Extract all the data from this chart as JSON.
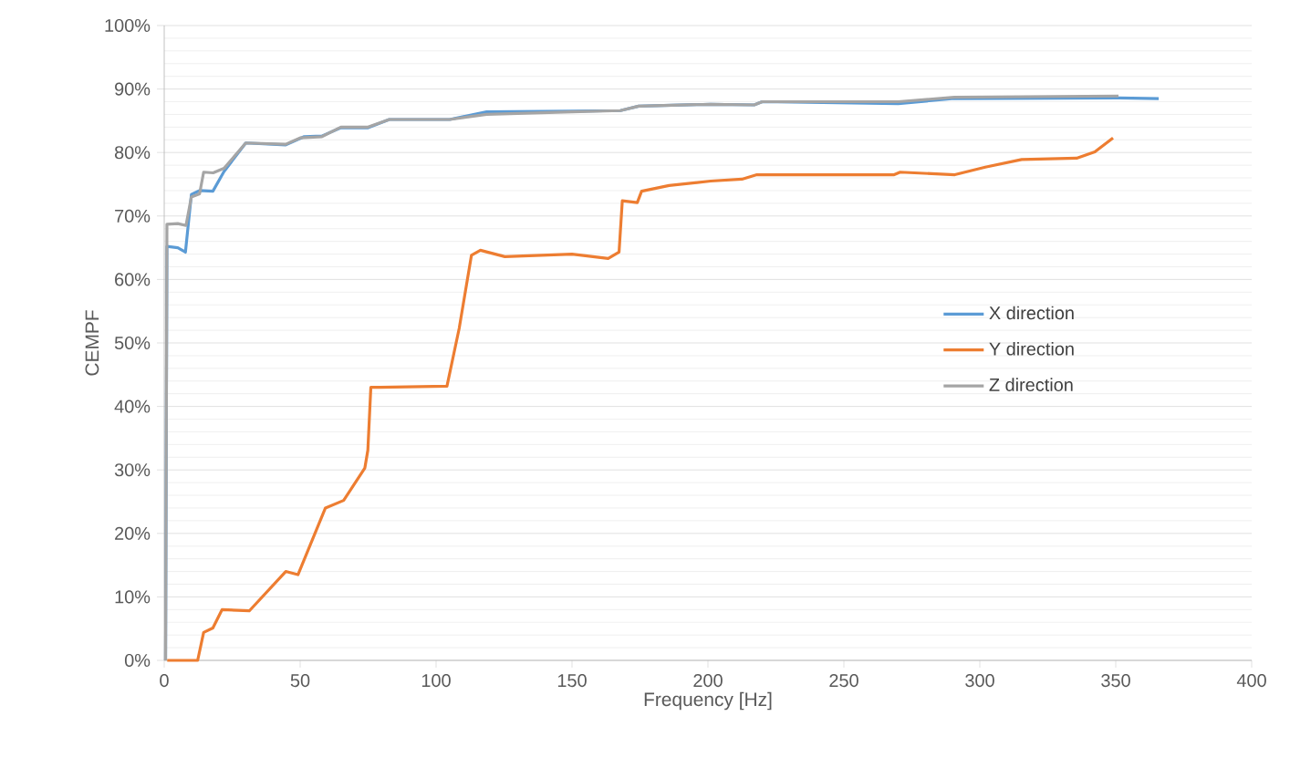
{
  "chart_data": {
    "type": "line",
    "xlabel": "Frequency [Hz]",
    "ylabel": "CEMPF",
    "xlim": [
      0,
      400
    ],
    "xticks": [
      0,
      50,
      100,
      150,
      200,
      250,
      300,
      350,
      400
    ],
    "ylim": [
      0,
      100
    ],
    "yticks": [
      {
        "value": 0,
        "label": "0%"
      },
      {
        "value": 10,
        "label": "10%"
      },
      {
        "value": 20,
        "label": "20%"
      },
      {
        "value": 30,
        "label": "30%"
      },
      {
        "value": 40,
        "label": "40%"
      },
      {
        "value": 50,
        "label": "50%"
      },
      {
        "value": 60,
        "label": "60%"
      },
      {
        "value": 70,
        "label": "70%"
      },
      {
        "value": 80,
        "label": "80%"
      },
      {
        "value": 90,
        "label": "90%"
      },
      {
        "value": 100,
        "label": "100%"
      }
    ],
    "grid": "y",
    "legend": "right",
    "marker": "none",
    "line_style": "solid",
    "series": [
      {
        "name": "X direction",
        "color": "#5b9bd5",
        "x": [
          0.5,
          1,
          5,
          7.8,
          10,
          13,
          17.9,
          22,
          30,
          44.7,
          51.5,
          58,
          65,
          75,
          82.8,
          105,
          118.6,
          150,
          167.8,
          174.5,
          201,
          217,
          220,
          270,
          290.6,
          351,
          365.8
        ],
        "values": [
          0,
          65.2,
          65,
          64.3,
          73.4,
          74,
          73.9,
          77,
          81.5,
          81.2,
          82.5,
          82.6,
          83.9,
          83.9,
          85.2,
          85.2,
          86.4,
          86.5,
          86.6,
          87.3,
          87.6,
          87.5,
          88,
          87.7,
          88.5,
          88.6,
          88.5
        ]
      },
      {
        "name": "Y direction",
        "color": "#ed7d31",
        "x": [
          1.1,
          12.3,
          14.5,
          17.9,
          21.3,
          31.3,
          44.7,
          49.2,
          59.3,
          66,
          73.8,
          74.9,
          76,
          79.4,
          104,
          108.5,
          113,
          116.3,
          125.3,
          150,
          163.3,
          167.3,
          168.5,
          174,
          175.6,
          185.7,
          201,
          212.5,
          218,
          268.5,
          270.7,
          290.8,
          302,
          315.4,
          335.6,
          342.3,
          349
        ],
        "values": [
          0,
          0,
          4.4,
          5.1,
          8,
          7.8,
          14,
          13.5,
          24,
          25.2,
          30.3,
          33.1,
          43,
          43,
          43.2,
          52.3,
          63.8,
          64.6,
          63.6,
          64,
          63.3,
          64.3,
          72.4,
          72.1,
          73.9,
          74.8,
          75.5,
          75.8,
          76.5,
          76.5,
          76.9,
          76.5,
          77.7,
          78.9,
          79.1,
          80.1,
          82.3
        ]
      },
      {
        "name": "Z direction",
        "color": "#a5a5a5",
        "x": [
          0.5,
          1,
          5,
          8,
          10,
          13,
          14.5,
          18,
          22,
          30,
          44.7,
          50,
          58,
          65,
          75,
          82.8,
          105,
          118.6,
          150,
          167.8,
          174.5,
          201,
          217,
          220,
          270,
          290.6,
          351
        ],
        "values": [
          0,
          68.7,
          68.8,
          68.5,
          73,
          73.5,
          76.9,
          76.8,
          77.5,
          81.5,
          81.3,
          82.3,
          82.5,
          84,
          84,
          85.2,
          85.2,
          86,
          86.4,
          86.6,
          87.3,
          87.6,
          87.5,
          88,
          88,
          88.7,
          88.9
        ]
      }
    ]
  }
}
